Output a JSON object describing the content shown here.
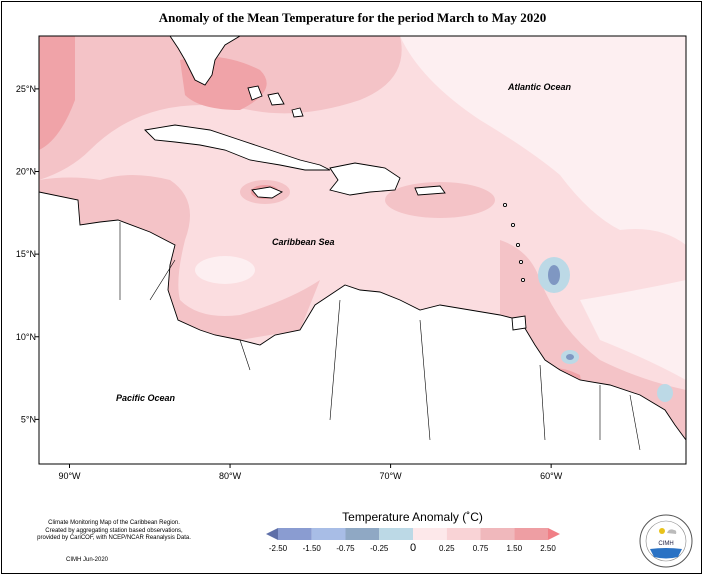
{
  "title": "Anomaly of the Mean Temperature for the period March to May 2020",
  "map": {
    "lon_ticks": [
      {
        "label": "90°W",
        "lon": -90
      },
      {
        "label": "80°W",
        "lon": -80
      },
      {
        "label": "70°W",
        "lon": -70
      },
      {
        "label": "60°W",
        "lon": -60
      }
    ],
    "lat_ticks": [
      {
        "label": "25°N",
        "lat": 25
      },
      {
        "label": "20°N",
        "lat": 20
      },
      {
        "label": "15°N",
        "lat": 15
      },
      {
        "label": "10°N",
        "lat": 10
      },
      {
        "label": "5°N",
        "lat": 5
      }
    ],
    "labels": {
      "atlantic": "Atlantic Ocean",
      "caribbean": "Caribbean Sea",
      "pacific": "Pacific Ocean"
    }
  },
  "legend": {
    "title": "Temperature Anomaly (˚C)",
    "bins": [
      {
        "color": "#5e6fa8"
      },
      {
        "color": "#8a9cd1"
      },
      {
        "color": "#a8bde6"
      },
      {
        "color": "#8fa8c4"
      },
      {
        "color": "#bcd9e6"
      },
      {
        "color": "#fde8ea"
      },
      {
        "color": "#f9d3d6"
      },
      {
        "color": "#f0b8bc"
      },
      {
        "color": "#ee9ea3"
      },
      {
        "color": "#f07f86"
      }
    ],
    "tick_labels": [
      "-2.50",
      "-1.50",
      "-0.75",
      "-0.25",
      "0",
      "0.25",
      "0.75",
      "1.50",
      "2.50"
    ]
  },
  "credit": {
    "lines": [
      "Climate Monitoring Map of the Caribbean Region.",
      "Created by aggregating station based observations,",
      "provided by CariCOF, with NCEP/NCAR Reanalysis Data."
    ],
    "date": "CIMH Jun-2020"
  },
  "logo": {
    "text": "CIMH",
    "icon": "cimh-logo-icon"
  },
  "colors": {
    "base": "#fbdde0",
    "light": "#fdeff1",
    "medium": "#f4c3c7",
    "strong": "#f0a3a8",
    "land": "#ffffff",
    "outline": "#000000"
  }
}
